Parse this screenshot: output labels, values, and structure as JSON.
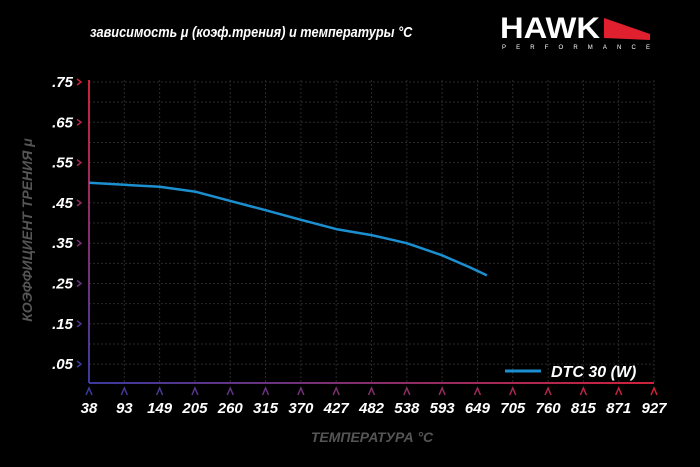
{
  "header": {
    "title": "зависимость μ (коэф.трения) и температуры °C",
    "logo_text": "HAWK",
    "logo_subtext": "PERFORMANCE"
  },
  "colors": {
    "background": "#000000",
    "series": "#1b8fd0",
    "axis_low": "#3b3a9e",
    "axis_high": "#d0213a",
    "grid": "#333333",
    "logo_accent": "#e0202e"
  },
  "chart_data": {
    "type": "line",
    "title": "зависимость μ (коэф.трения) и температуры °C",
    "xlabel": "ТЕМПЕРАТУРА °C",
    "ylabel": "КОЭФФИЦИЕНТ ТРЕНИЯ μ",
    "xticks": [
      "38",
      "93",
      "149",
      "205",
      "260",
      "315",
      "370",
      "427",
      "482",
      "538",
      "593",
      "649",
      "705",
      "760",
      "815",
      "871",
      "927"
    ],
    "yticks": [
      ".75",
      ".65",
      ".55",
      ".45",
      ".35",
      ".25",
      ".15",
      ".05"
    ],
    "xlim": [
      38,
      927
    ],
    "ylim": [
      0.003,
      0.755
    ],
    "grid": true,
    "legend_position": "bottom-right",
    "series": [
      {
        "name": "DTC 30 (W)",
        "x": [
          38,
          93,
          149,
          205,
          260,
          315,
          370,
          427,
          482,
          538,
          593,
          637,
          664
        ],
        "y": [
          0.5,
          0.495,
          0.49,
          0.478,
          0.455,
          0.432,
          0.408,
          0.385,
          0.37,
          0.35,
          0.32,
          0.29,
          0.27
        ]
      }
    ]
  }
}
